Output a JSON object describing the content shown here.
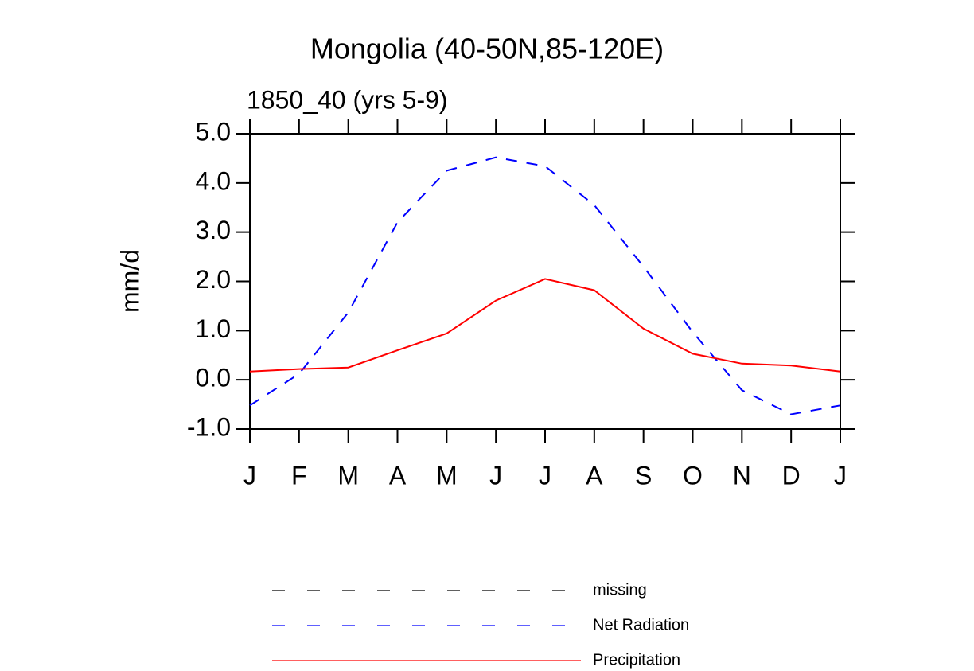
{
  "chart_data": {
    "type": "line",
    "title": "Mongolia (40-50N,85-120E)",
    "subtitle": "1850_40 (yrs 5-9)",
    "y_label": "mm/d",
    "categories": [
      "J",
      "F",
      "M",
      "A",
      "M",
      "J",
      "J",
      "A",
      "S",
      "O",
      "N",
      "D",
      "J"
    ],
    "series": [
      {
        "name": "missing",
        "color": "#000000",
        "line_style": "dashed",
        "values": [
          null,
          null,
          null,
          null,
          null,
          null,
          null,
          null,
          null,
          null,
          null,
          null,
          null
        ]
      },
      {
        "name": "Net Radiation",
        "color": "#0000ff",
        "line_style": "dashed",
        "values": [
          -0.52,
          0.12,
          1.37,
          3.2,
          4.25,
          4.52,
          4.34,
          3.55,
          2.3,
          0.97,
          -0.21,
          -0.7,
          -0.52
        ]
      },
      {
        "name": "Precipitation",
        "color": "#ff0000",
        "line_style": "solid",
        "values": [
          0.17,
          0.22,
          0.25,
          0.6,
          0.94,
          1.61,
          2.05,
          1.82,
          1.04,
          0.53,
          0.33,
          0.29,
          0.17
        ]
      }
    ],
    "ylim": [
      -1,
      5
    ],
    "yticks": [
      {
        "value": -1,
        "label": "-1.0"
      },
      {
        "value": 0,
        "label": "0.0"
      },
      {
        "value": 1,
        "label": "1.0"
      },
      {
        "value": 2,
        "label": "2.0"
      },
      {
        "value": 3,
        "label": "3.0"
      },
      {
        "value": 4,
        "label": "4.0"
      },
      {
        "value": 5,
        "label": "5.0"
      }
    ],
    "grid": false,
    "legend": "bottom"
  }
}
